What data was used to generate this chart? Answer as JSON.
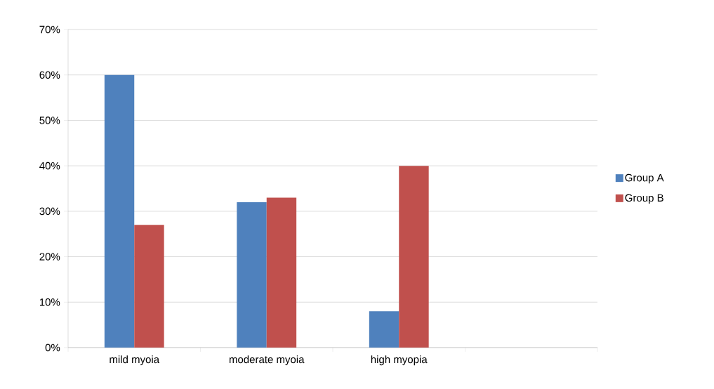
{
  "chart_data": {
    "type": "bar",
    "categories": [
      "mild myoia",
      "moderate myoia",
      "high myopia",
      null
    ],
    "series": [
      {
        "name": "Group A",
        "color": "#4f81bd",
        "values": [
          60,
          32,
          8,
          null
        ]
      },
      {
        "name": "Group B",
        "color": "#c0504d",
        "values": [
          27,
          33,
          40,
          null
        ]
      }
    ],
    "ylim": [
      0,
      70
    ],
    "yticks": [
      {
        "value": 0,
        "label": "0%"
      },
      {
        "value": 10,
        "label": "10%"
      },
      {
        "value": 20,
        "label": "20%"
      },
      {
        "value": 30,
        "label": "30%"
      },
      {
        "value": 40,
        "label": "40%"
      },
      {
        "value": 50,
        "label": "50%"
      },
      {
        "value": 60,
        "label": "60%"
      },
      {
        "value": 70,
        "label": "70%"
      }
    ],
    "grid": "y",
    "legend": "right"
  }
}
